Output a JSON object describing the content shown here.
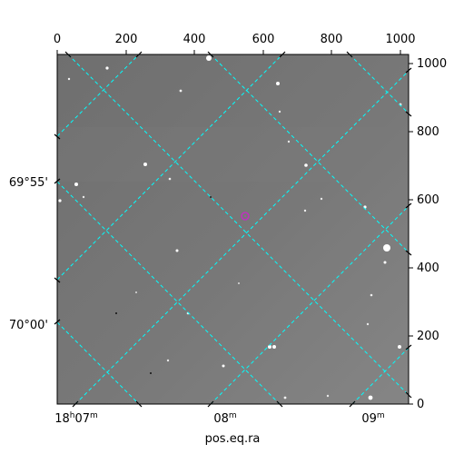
{
  "image_panel": {
    "top_axis_ticks": [
      "0",
      "200",
      "400",
      "600",
      "800",
      "1000"
    ],
    "right_axis_ticks": [
      "0",
      "200",
      "400",
      "600",
      "800",
      "1000"
    ],
    "left_axis_ticks": [
      "69°55'",
      "70°00'"
    ],
    "bottom_axis_ticks": {
      "t1_base": "18",
      "t1_h": "h",
      "t1_mm": "07",
      "t1_m": "m",
      "t2_base": "08",
      "t2_m": "m",
      "t3_base": "09",
      "t3_m": "m"
    },
    "xlabel": "pos.eq.ra",
    "colors": {
      "grid": "#00ffff",
      "marker": "#c030c0",
      "sky": "#777777"
    },
    "marker": {
      "shape": "circle",
      "icon": "target-circle-icon"
    }
  }
}
